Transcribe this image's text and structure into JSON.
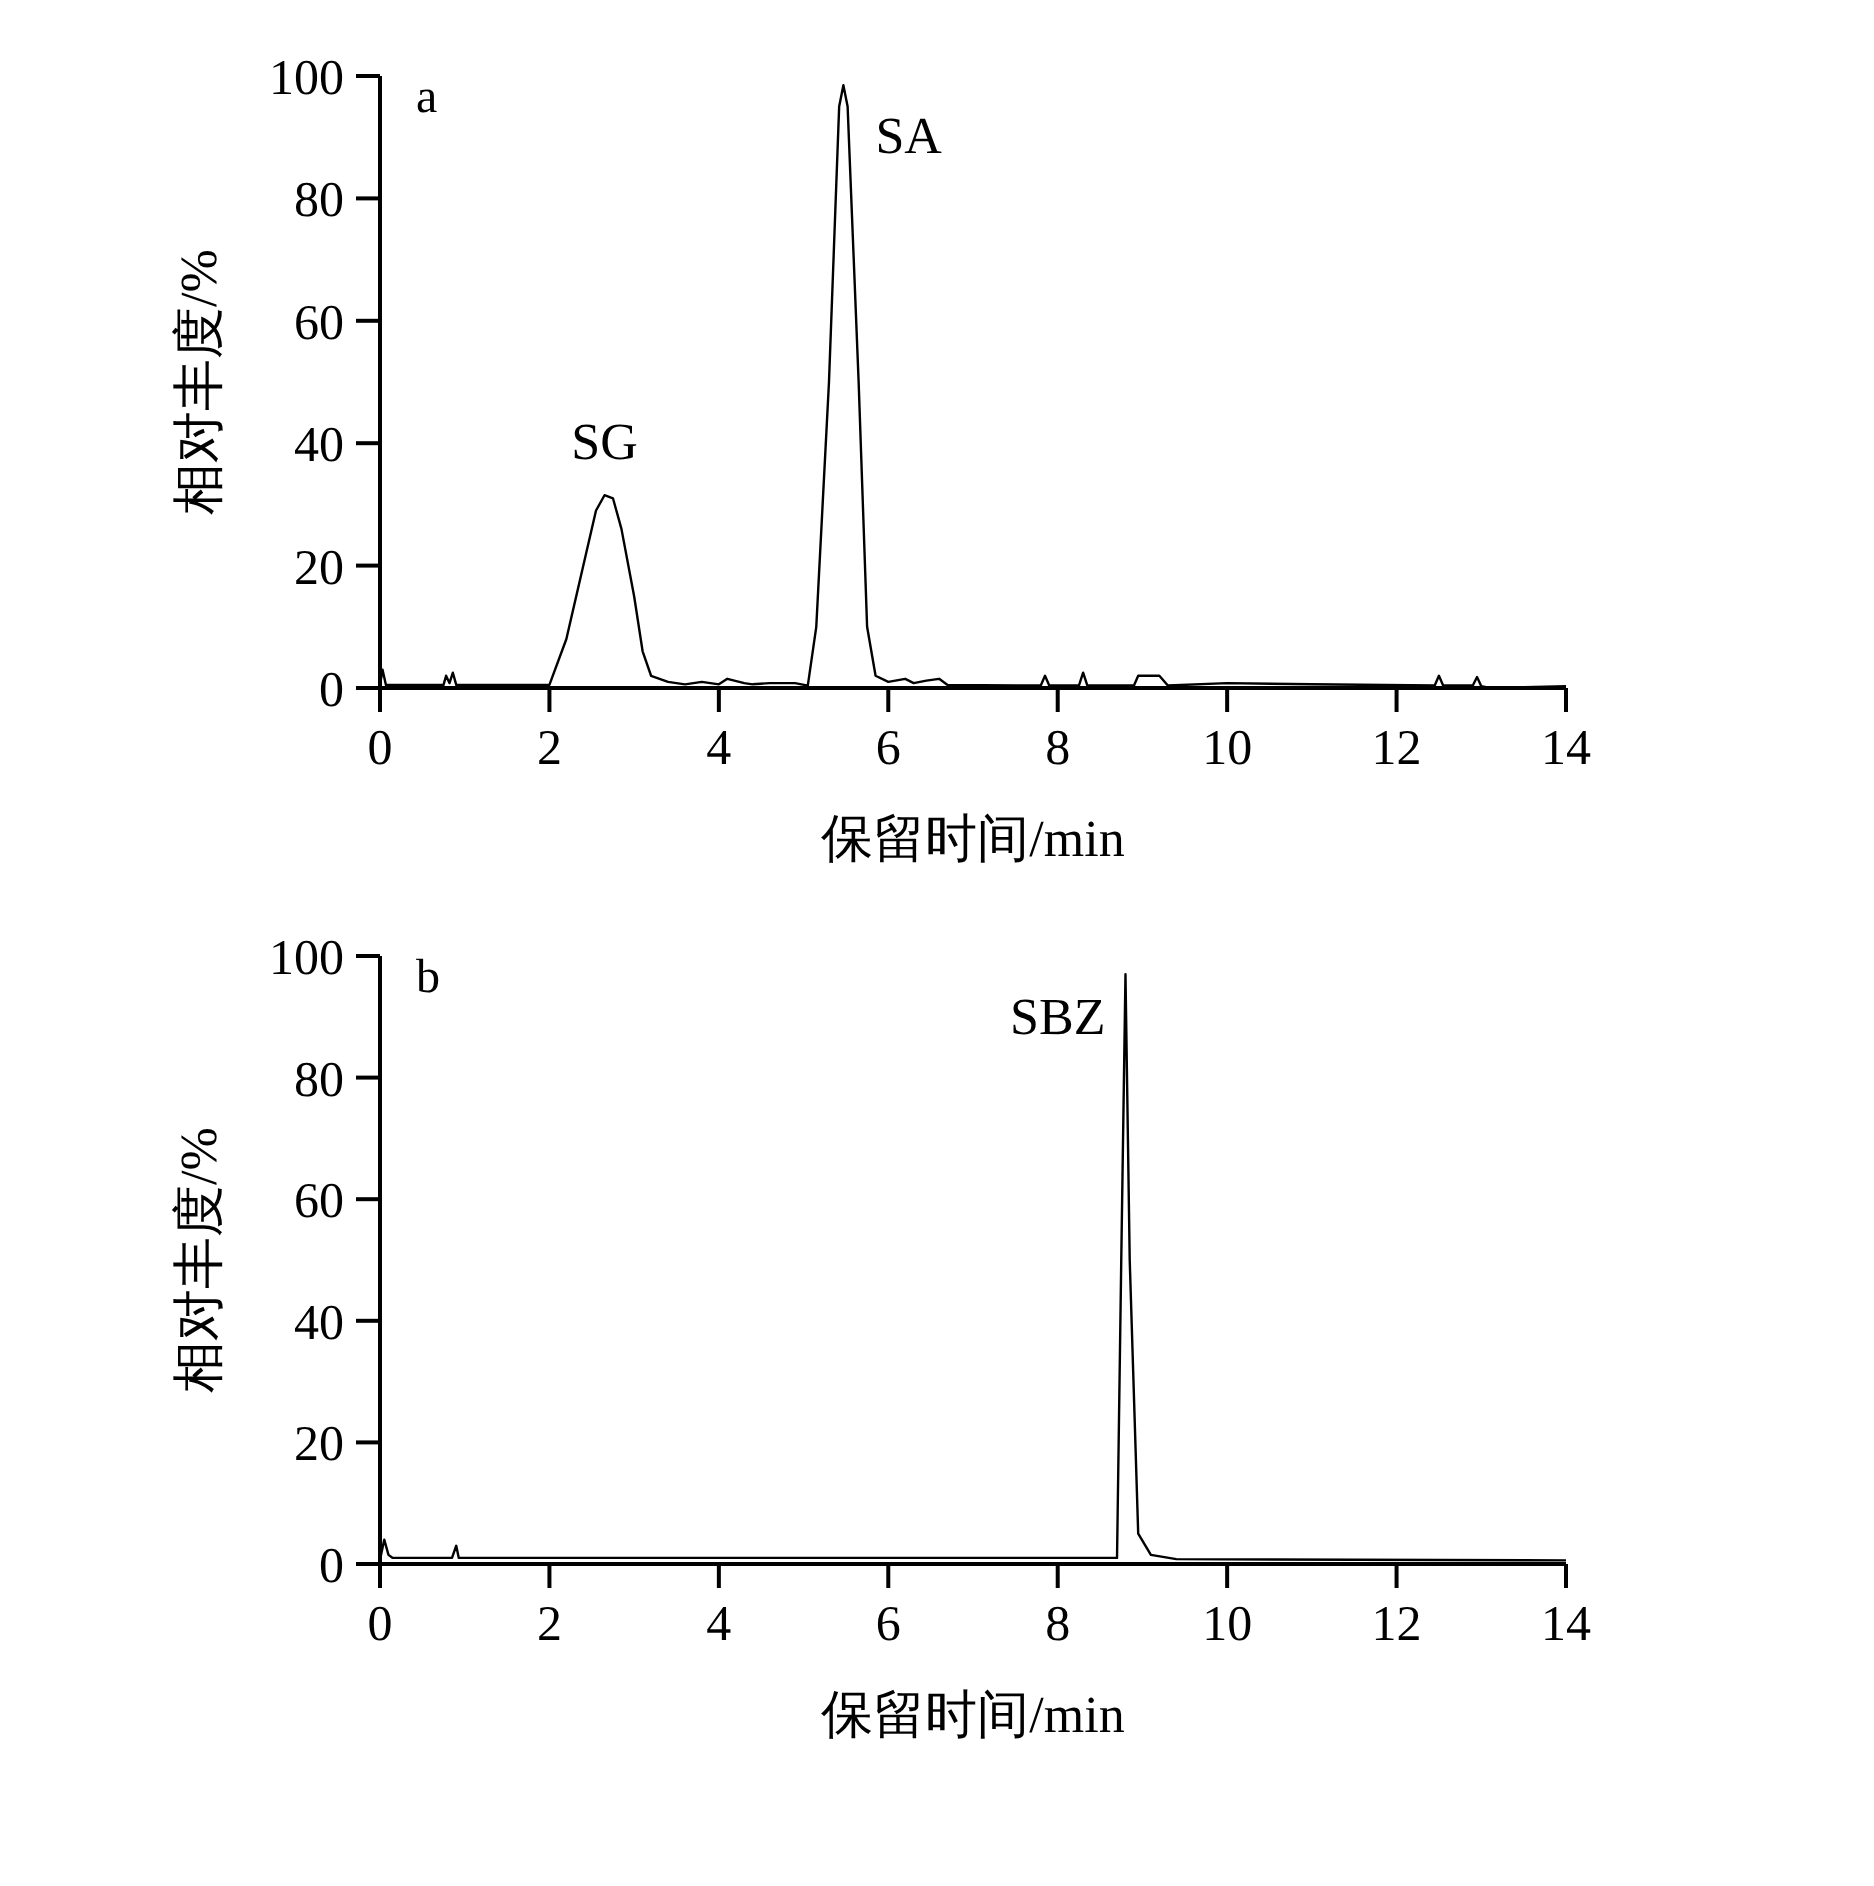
{
  "chart_data": [
    {
      "type": "line",
      "title": "a",
      "xlabel": "保留时间/min",
      "ylabel": "相对丰度/%",
      "color": "#000000",
      "xlim": [
        0,
        14
      ],
      "ylim": [
        0,
        100
      ],
      "xticks": [
        0,
        2,
        4,
        6,
        8,
        10,
        12,
        14
      ],
      "yticks": [
        0,
        20,
        40,
        60,
        80,
        100
      ],
      "x": [
        0,
        0.03,
        0.07,
        0.75,
        0.78,
        0.82,
        0.86,
        0.9,
        2.0,
        2.2,
        2.4,
        2.55,
        2.65,
        2.75,
        2.85,
        3.0,
        3.1,
        3.2,
        3.4,
        3.6,
        3.8,
        4.0,
        4.1,
        4.3,
        4.4,
        4.6,
        4.9,
        5.05,
        5.15,
        5.3,
        5.42,
        5.47,
        5.52,
        5.65,
        5.75,
        5.85,
        6.0,
        6.2,
        6.3,
        6.45,
        6.6,
        6.7,
        7.8,
        7.85,
        7.9,
        8.25,
        8.3,
        8.35,
        8.9,
        8.95,
        9.2,
        9.3,
        10,
        11,
        12.45,
        12.5,
        12.55,
        12.9,
        12.95,
        13.0,
        13.1,
        14
      ],
      "values": [
        0.5,
        3,
        0.5,
        0.5,
        2,
        0.8,
        2.5,
        0.5,
        0.5,
        8,
        20,
        29,
        31.5,
        31,
        26,
        15,
        6,
        2,
        1,
        0.6,
        1,
        0.6,
        1.5,
        0.8,
        0.6,
        0.8,
        0.8,
        0.4,
        10,
        50,
        95,
        98.5,
        95,
        50,
        10,
        2,
        1,
        1.5,
        0.8,
        1.2,
        1.5,
        0.5,
        0.4,
        2,
        0.4,
        0.4,
        2.5,
        0.4,
        0.4,
        2,
        2,
        0.4,
        0.8,
        0.6,
        0.4,
        2,
        0.4,
        0.4,
        1.8,
        0.3,
        0,
        0.3
      ],
      "annotations": [
        {
          "text": "SG",
          "x": 2.65,
          "y": 31.5
        },
        {
          "text": "SA",
          "x": 5.47,
          "y": 98.5
        }
      ]
    },
    {
      "type": "line",
      "title": "b",
      "xlabel": "保留时间/min",
      "ylabel": "相对丰度/%",
      "color": "#000000",
      "xlim": [
        0,
        14
      ],
      "ylim": [
        0,
        100
      ],
      "xticks": [
        0,
        2,
        4,
        6,
        8,
        10,
        12,
        14
      ],
      "yticks": [
        0,
        20,
        40,
        60,
        80,
        100
      ],
      "x": [
        0,
        0.05,
        0.1,
        0.15,
        0.85,
        0.9,
        0.93,
        8.7,
        8.75,
        8.8,
        8.85,
        8.95,
        9.1,
        9.4,
        14
      ],
      "values": [
        0.7,
        4,
        1.5,
        1,
        1,
        3,
        1,
        1,
        50,
        97,
        50,
        5,
        1.5,
        0.8,
        0.6
      ],
      "annotations": [
        {
          "text": "SBZ",
          "x": 8.8,
          "y": 97
        }
      ]
    }
  ]
}
